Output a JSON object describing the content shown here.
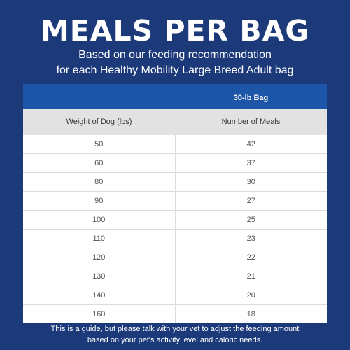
{
  "header": {
    "title": "MEALS PER BAG",
    "subtitle_line1": "Based on our feeding recommendation",
    "subtitle_line2": "for each Healthy Mobility Large Breed Adult bag"
  },
  "table": {
    "column_group_label": "30-lb Bag",
    "columns": [
      "Weight of Dog (lbs)",
      "Number of Meals"
    ],
    "rows": [
      [
        "50",
        "42"
      ],
      [
        "60",
        "37"
      ],
      [
        "80",
        "30"
      ],
      [
        "90",
        "27"
      ],
      [
        "100",
        "25"
      ],
      [
        "110",
        "23"
      ],
      [
        "120",
        "22"
      ],
      [
        "130",
        "21"
      ],
      [
        "140",
        "20"
      ],
      [
        "160",
        "18"
      ]
    ]
  },
  "footer": {
    "line1": "This is a guide, but please talk with your vet to adjust the feeding amount",
    "line2": "based on your pet's activity level and caloric needs."
  },
  "colors": {
    "background": "#1c3a7a",
    "header_band": "#1d56a8",
    "column_header_bg": "#e2e2e2"
  }
}
